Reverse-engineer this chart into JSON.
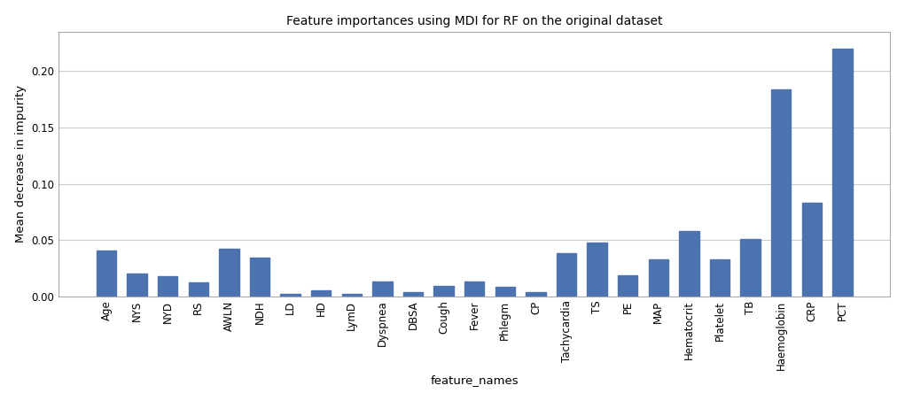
{
  "title": "Feature importances using MDI for RF on the original dataset",
  "xlabel": "feature_names",
  "ylabel": "Mean decrease in impurity",
  "categories": [
    "Age",
    "NYS",
    "NYD",
    "RS",
    "AWLN",
    "NDH",
    "LD",
    "HD",
    "LymD",
    "Dyspnea",
    "DBSA",
    "Cough",
    "Fever",
    "Phlegm",
    "CP",
    "Tachycardia",
    "TS",
    "PE",
    "MAP",
    "Hematocrit",
    "Platelet",
    "TB",
    "Haemoglobin",
    "CRP",
    "PCT"
  ],
  "values": [
    0.041,
    0.02,
    0.018,
    0.012,
    0.042,
    0.034,
    0.002,
    0.005,
    0.002,
    0.013,
    0.004,
    0.009,
    0.013,
    0.008,
    0.004,
    0.038,
    0.048,
    0.019,
    0.033,
    0.058,
    0.033,
    0.051,
    0.184,
    0.083,
    0.22
  ],
  "bar_color": "#4c72b0",
  "ylim": [
    0,
    0.235
  ],
  "yticks": [
    0.0,
    0.05,
    0.1,
    0.15,
    0.2
  ],
  "title_fontsize": 10,
  "label_fontsize": 9.5,
  "tick_fontsize": 8.5,
  "background_color": "#ffffff",
  "figure_facecolor": "#ffffff",
  "spine_color": "#aaaaaa",
  "grid_color": "#cccccc"
}
